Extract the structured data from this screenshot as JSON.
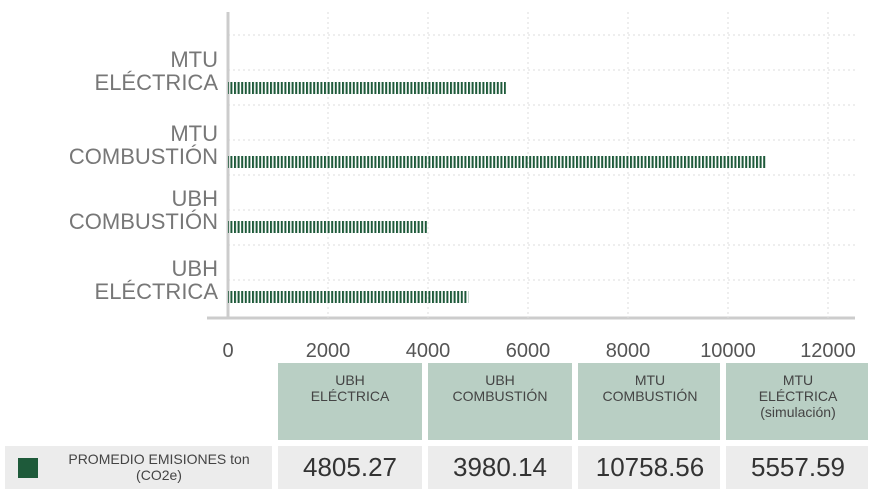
{
  "chart_data": {
    "type": "bar",
    "orientation": "horizontal",
    "categories": [
      "UBH\nELÉCTRICA",
      "UBH\nCOMBUSTIÓN",
      "MTU\nCOMBUSTIÓN",
      "MTU\nELÉCTRICA"
    ],
    "table_headers": [
      "UBH\nELÉCTRICA",
      "UBH\nCOMBUSTIÓN",
      "MTU\nCOMBUSTIÓN",
      "MTU\nELÉCTRICA\n(simulación)"
    ],
    "series": [
      {
        "name": "PROMEDIO EMISIONES ton\n(CO2e)",
        "color": "#1e5a3a",
        "values": [
          4805.27,
          3980.14,
          10758.56,
          5557.59
        ]
      }
    ],
    "xlim": [
      0,
      12000
    ],
    "xticks": [
      0,
      2000,
      4000,
      6000,
      8000,
      10000,
      12000
    ],
    "grid": true
  }
}
